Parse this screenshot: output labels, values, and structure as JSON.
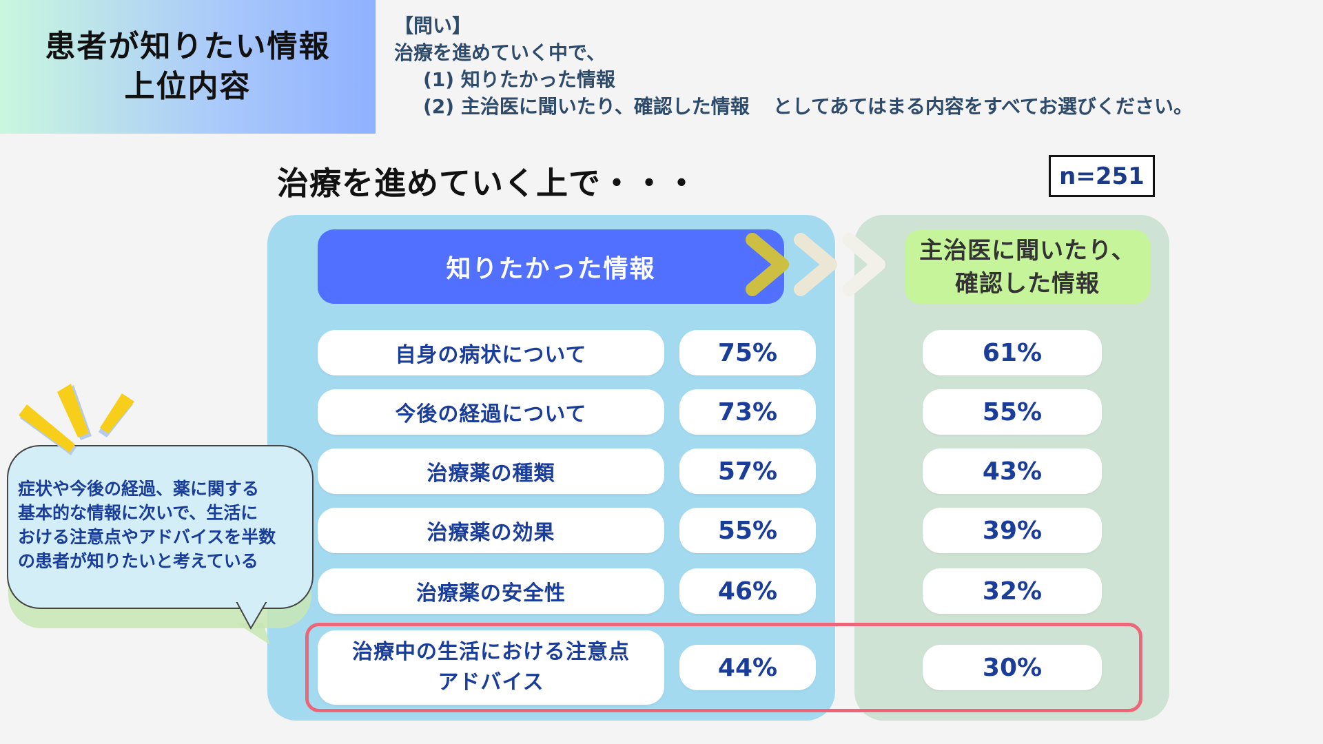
{
  "title": {
    "line1": "患者が知りたい情報",
    "line2": "上位内容"
  },
  "question": {
    "tag": "【問い】",
    "line1": "治療を進めていく中で、",
    "line2": "(1) 知りたかった情報",
    "line3a": "(2) 主治医に聞いたり、確認した情報",
    "line3b": "としてあてはまる内容をすべてお選びください。"
  },
  "subheading": "治療を進めていく上で・・・",
  "sample_size": "n=251",
  "headers": {
    "left": "知りたかった情報",
    "right_line1": "主治医に聞いたり、",
    "right_line2": "確認した情報"
  },
  "rows": [
    {
      "label": "自身の病状について",
      "wanted": "75%",
      "asked": "61%"
    },
    {
      "label": "今後の経過について",
      "wanted": "73%",
      "asked": "55%"
    },
    {
      "label": "治療薬の種類",
      "wanted": "57%",
      "asked": "43%"
    },
    {
      "label": "治療薬の効果",
      "wanted": "55%",
      "asked": "39%"
    },
    {
      "label": "治療薬の安全性",
      "wanted": "46%",
      "asked": "32%"
    },
    {
      "label_line1": "治療中の生活における注意点",
      "label_line2": "アドバイス",
      "wanted": "44%",
      "asked": "30%"
    }
  ],
  "callout": {
    "line1": "症状や今後の経過、薬に関する",
    "line2": "基本的な情報に次いで、生活に",
    "line3": "おける注意点やアドバイスを半数",
    "line4": "の患者が知りたいと考えている"
  },
  "colors": {
    "left_panel": "#a3daf0",
    "right_panel": "#cee3d3",
    "left_header": "#5170ff",
    "right_header": "#c6f49a",
    "value_text": "#1a3d99",
    "highlight": "#ec6677",
    "accent_yellow": "#f7cf1a"
  },
  "icons": [
    "chevron-right-icon",
    "sparkle-icon",
    "speech-bubble"
  ]
}
